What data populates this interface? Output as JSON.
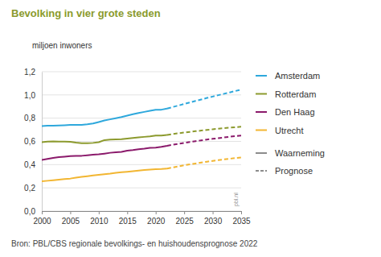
{
  "chart_data": {
    "type": "line",
    "title": "Bevolking in vier grote steden",
    "y_label": "miljoen inwoners",
    "source": "Bron: PBL/CBS regionale bevolkings- en huishoudensprognose 2022",
    "annotations": [
      "pbl.nl"
    ],
    "x": [
      2000,
      2001,
      2002,
      2003,
      2004,
      2005,
      2006,
      2007,
      2008,
      2009,
      2010,
      2011,
      2012,
      2013,
      2014,
      2015,
      2016,
      2017,
      2018,
      2019,
      2020,
      2021,
      2022,
      2023,
      2024,
      2025,
      2026,
      2027,
      2028,
      2029,
      2030,
      2031,
      2032,
      2033,
      2034,
      2035
    ],
    "xlim": [
      2000,
      2035
    ],
    "xticks": [
      2000,
      2005,
      2010,
      2015,
      2020,
      2025,
      2030,
      2035
    ],
    "ylim": [
      0,
      1.2
    ],
    "yticks": [
      {
        "value": 0,
        "label": "0,0"
      },
      {
        "value": 0.2,
        "label": "0,2"
      },
      {
        "value": 0.4,
        "label": "0,4"
      },
      {
        "value": 0.6,
        "label": "0,6"
      },
      {
        "value": 0.8,
        "label": "0,8"
      },
      {
        "value": 1.0,
        "label": "1,0"
      },
      {
        "value": 1.2,
        "label": "1,2"
      }
    ],
    "grid": true,
    "legend": "right",
    "legend_styles": [
      {
        "name": "Waarneming",
        "line_style": "solid"
      },
      {
        "name": "Prognose",
        "line_style": "dashed"
      }
    ],
    "series": [
      {
        "name": "Amsterdam",
        "color": "#2ea8dc",
        "values": [
          0.731,
          0.735,
          0.736,
          0.737,
          0.739,
          0.742,
          0.743,
          0.743,
          0.747,
          0.755,
          0.767,
          0.78,
          0.79,
          0.8,
          0.81,
          0.822,
          0.834,
          0.845,
          0.854,
          0.863,
          0.872,
          0.873,
          0.883,
          null,
          null,
          null,
          null,
          null,
          null,
          null,
          null,
          null,
          null,
          null,
          null,
          null
        ],
        "forecast": [
          null,
          null,
          null,
          null,
          null,
          null,
          null,
          null,
          null,
          null,
          null,
          null,
          null,
          null,
          null,
          null,
          null,
          null,
          null,
          null,
          null,
          null,
          0.883,
          0.896,
          0.909,
          0.922,
          0.935,
          0.948,
          0.961,
          0.974,
          0.986,
          0.998,
          1.01,
          1.022,
          1.034,
          1.046
        ]
      },
      {
        "name": "Rotterdam",
        "color": "#8c9a2e",
        "values": [
          0.593,
          0.598,
          0.6,
          0.599,
          0.598,
          0.597,
          0.589,
          0.585,
          0.584,
          0.587,
          0.593,
          0.611,
          0.616,
          0.617,
          0.619,
          0.624,
          0.629,
          0.634,
          0.639,
          0.644,
          0.651,
          0.651,
          0.655,
          null,
          null,
          null,
          null,
          null,
          null,
          null,
          null,
          null,
          null,
          null,
          null,
          null
        ],
        "forecast": [
          null,
          null,
          null,
          null,
          null,
          null,
          null,
          null,
          null,
          null,
          null,
          null,
          null,
          null,
          null,
          null,
          null,
          null,
          null,
          null,
          null,
          null,
          0.655,
          0.664,
          0.67,
          0.676,
          0.682,
          0.688,
          0.693,
          0.699,
          0.704,
          0.709,
          0.714,
          0.718,
          0.722,
          0.726
        ]
      },
      {
        "name": "Den Haag",
        "color": "#8b1a6b",
        "values": [
          0.441,
          0.449,
          0.458,
          0.464,
          0.469,
          0.473,
          0.475,
          0.476,
          0.481,
          0.486,
          0.489,
          0.495,
          0.502,
          0.506,
          0.51,
          0.52,
          0.525,
          0.533,
          0.538,
          0.545,
          0.547,
          0.553,
          0.562,
          null,
          null,
          null,
          null,
          null,
          null,
          null,
          null,
          null,
          null,
          null,
          null,
          null
        ],
        "forecast": [
          null,
          null,
          null,
          null,
          null,
          null,
          null,
          null,
          null,
          null,
          null,
          null,
          null,
          null,
          null,
          null,
          null,
          null,
          null,
          null,
          null,
          null,
          0.562,
          0.571,
          0.579,
          0.587,
          0.595,
          0.602,
          0.609,
          0.616,
          0.622,
          0.628,
          0.634,
          0.64,
          0.645,
          0.65
        ]
      },
      {
        "name": "Utrecht",
        "color": "#f2b632",
        "values": [
          0.256,
          0.261,
          0.265,
          0.27,
          0.275,
          0.28,
          0.288,
          0.294,
          0.3,
          0.307,
          0.312,
          0.317,
          0.322,
          0.329,
          0.334,
          0.338,
          0.343,
          0.348,
          0.353,
          0.358,
          0.361,
          0.362,
          0.366,
          null,
          null,
          null,
          null,
          null,
          null,
          null,
          null,
          null,
          null,
          null,
          null,
          null
        ],
        "forecast": [
          null,
          null,
          null,
          null,
          null,
          null,
          null,
          null,
          null,
          null,
          null,
          null,
          null,
          null,
          null,
          null,
          null,
          null,
          null,
          null,
          null,
          null,
          0.366,
          0.376,
          0.385,
          0.394,
          0.402,
          0.41,
          0.418,
          0.425,
          0.432,
          0.439,
          0.445,
          0.451,
          0.456,
          0.461
        ]
      }
    ]
  }
}
